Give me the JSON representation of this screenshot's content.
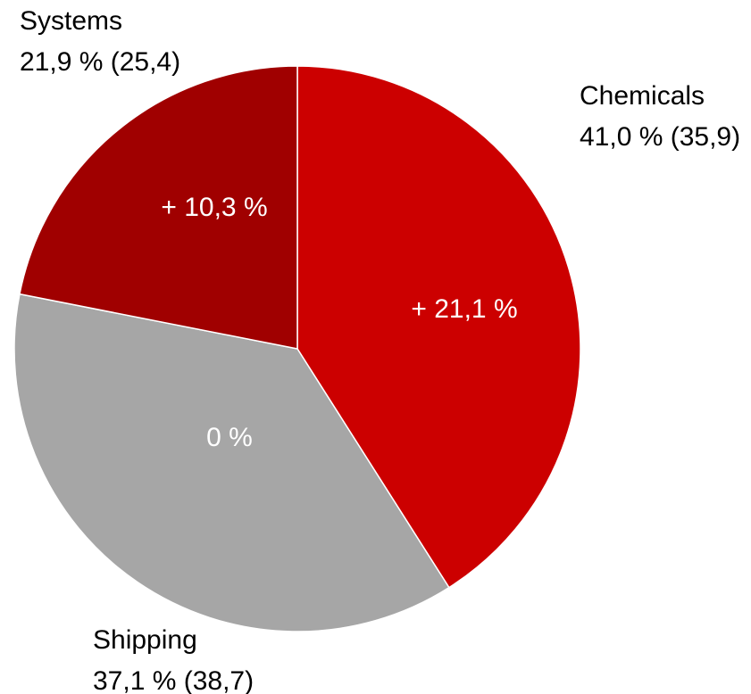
{
  "chart_data": {
    "type": "pie",
    "slices": [
      {
        "name": "Chemicals",
        "share_label": "41,0 % (35,9)",
        "value": 41.0,
        "change_label": "+ 21,1 %",
        "color": "#cc0000"
      },
      {
        "name": "Shipping",
        "share_label": "37,1 % (38,7)",
        "value": 37.1,
        "change_label": "0 %",
        "color": "#a6a6a6"
      },
      {
        "name": "Systems",
        "share_label": "21,9 % (25,4)",
        "value": 21.9,
        "change_label": "+ 10,3 %",
        "color": "#a00000"
      }
    ],
    "start_angle": "12 o'clock",
    "direction": "clockwise",
    "slice_separator_color": "#ffffff"
  }
}
